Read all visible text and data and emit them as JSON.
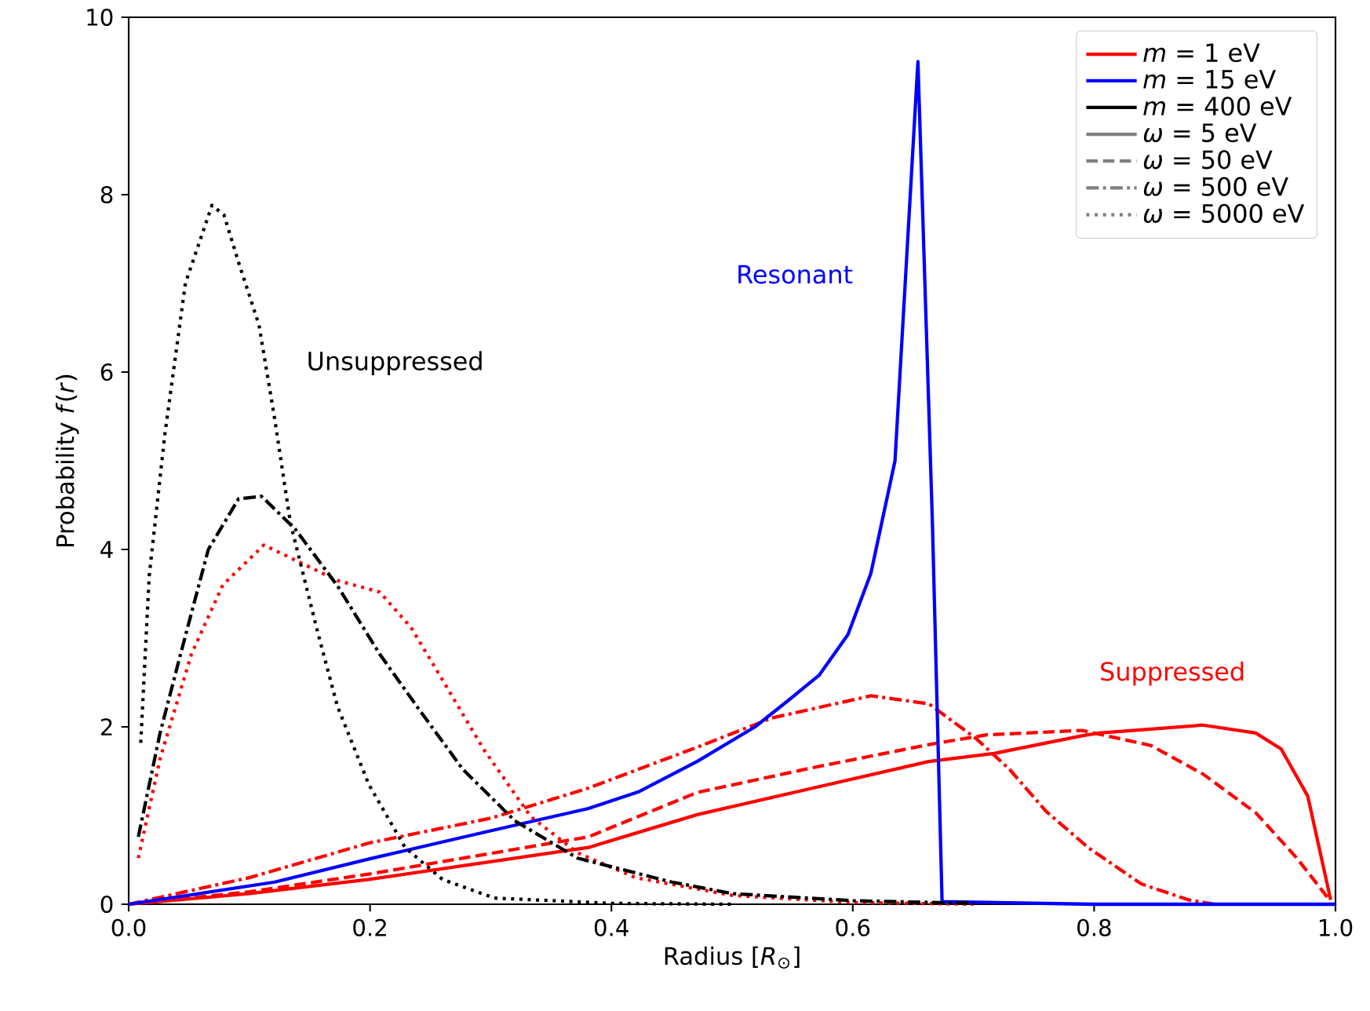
{
  "chart_data": {
    "type": "line",
    "xlabel": "Radius [*R*$_{⊙}$]",
    "ylabel": "Probability *f*(*r*)",
    "xlim": [
      0,
      1
    ],
    "ylim": [
      0,
      10
    ],
    "xticks": [
      {
        "value": 0,
        "label": "0.0"
      },
      0.2,
      0.4,
      0.6,
      0.8,
      {
        "value": 1,
        "label": "1.0"
      }
    ],
    "yticks": [
      0,
      2,
      4,
      6,
      8,
      10
    ],
    "grid": false,
    "legend": "top right",
    "marker": "none",
    "series": [
      {
        "color": "#ff0000",
        "line_style": "solid",
        "x": [
          0,
          0.1,
          0.199,
          0.381,
          0.471,
          0.567,
          0.663,
          0.717,
          0.79,
          0.804,
          0.89,
          0.934,
          0.955,
          0.977,
          0.996
        ],
        "values": [
          0,
          0.12,
          0.28,
          0.64,
          1.01,
          1.31,
          1.61,
          1.7,
          1.9,
          1.93,
          2.02,
          1.93,
          1.75,
          1.22,
          0.05
        ]
      },
      {
        "color": "#ff0000",
        "line_style": "dashed",
        "x": [
          0,
          0.1,
          0.199,
          0.381,
          0.471,
          0.567,
          0.663,
          0.711,
          0.79,
          0.847,
          0.89,
          0.934,
          0.968,
          0.995
        ],
        "values": [
          0,
          0.14,
          0.34,
          0.76,
          1.26,
          1.54,
          1.8,
          1.91,
          1.96,
          1.79,
          1.47,
          1.03,
          0.52,
          0.05
        ]
      },
      {
        "color": "#ff0000",
        "line_style": "dashdot",
        "x": [
          0,
          0.1,
          0.199,
          0.3,
          0.381,
          0.471,
          0.533,
          0.615,
          0.663,
          0.702,
          0.73,
          0.76,
          0.795,
          0.839,
          0.878,
          0.9
        ],
        "values": [
          0,
          0.3,
          0.69,
          0.97,
          1.31,
          1.77,
          2.1,
          2.35,
          2.26,
          1.87,
          1.52,
          1.05,
          0.64,
          0.23,
          0.05,
          0
        ]
      },
      {
        "color": "#ff0000",
        "line_style": "dotted",
        "x": [
          0.008,
          0.026,
          0.052,
          0.078,
          0.112,
          0.138,
          0.173,
          0.208,
          0.234,
          0.26,
          0.294,
          0.333,
          0.372,
          0.42,
          0.5,
          0.6,
          0.7
        ],
        "values": [
          0.52,
          1.64,
          2.82,
          3.6,
          4.05,
          3.88,
          3.65,
          3.52,
          3.12,
          2.53,
          1.75,
          0.99,
          0.58,
          0.3,
          0.1,
          0.02,
          0
        ]
      },
      {
        "color": "#0000ff",
        "line_style": "solid",
        "x": [
          0,
          0.121,
          0.199,
          0.294,
          0.381,
          0.423,
          0.471,
          0.519,
          0.544,
          0.572,
          0.596,
          0.615,
          0.635,
          0.654,
          0.666,
          0.674,
          0.8,
          1.0
        ],
        "values": [
          0,
          0.25,
          0.51,
          0.81,
          1.08,
          1.27,
          1.61,
          2.0,
          2.27,
          2.58,
          3.04,
          3.73,
          5.0,
          9.5,
          4.3,
          0.03,
          0,
          0
        ]
      },
      {
        "color": "#000000",
        "line_style": "dashdot",
        "x": [
          0.008,
          0.026,
          0.043,
          0.066,
          0.091,
          0.11,
          0.138,
          0.173,
          0.208,
          0.242,
          0.277,
          0.32,
          0.372,
          0.45,
          0.5,
          0.6,
          0.7
        ],
        "values": [
          0.76,
          1.93,
          2.82,
          4.0,
          4.57,
          4.6,
          4.23,
          3.59,
          2.82,
          2.17,
          1.52,
          0.94,
          0.52,
          0.25,
          0.12,
          0.04,
          0.01
        ]
      },
      {
        "color": "#000000",
        "line_style": "dotted",
        "x": [
          0.01,
          0.017,
          0.03,
          0.047,
          0.069,
          0.079,
          0.091,
          0.108,
          0.121,
          0.134,
          0.156,
          0.173,
          0.199,
          0.229,
          0.26,
          0.303,
          0.4,
          0.5
        ],
        "values": [
          1.82,
          3.7,
          5.3,
          7.0,
          7.88,
          7.77,
          7.24,
          6.53,
          5.47,
          4.3,
          3.1,
          2.23,
          1.35,
          0.64,
          0.28,
          0.07,
          0.01,
          0
        ]
      },
      {
        "name": "*m* = 1 eV",
        "color": "#ff0000",
        "line_style": "solid"
      },
      {
        "name": "*m* = 15 eV",
        "color": "#0000ff",
        "line_style": "solid"
      },
      {
        "name": "*m* = 400 eV",
        "color": "#000000",
        "line_style": "solid"
      },
      {
        "name": "*ω* = 5 eV",
        "color": "#808080",
        "line_style": "solid"
      },
      {
        "name": "*ω* = 50 eV",
        "color": "#808080",
        "line_style": "dashed"
      },
      {
        "name": "*ω* = 500 eV",
        "color": "#808080",
        "line_style": "dashdot"
      },
      {
        "name": "*ω* = 5000 eV",
        "color": "#808080",
        "line_style": "dotted"
      }
    ],
    "annotations": [
      "Unsuppressed",
      "Resonant",
      "Suppressed"
    ]
  }
}
